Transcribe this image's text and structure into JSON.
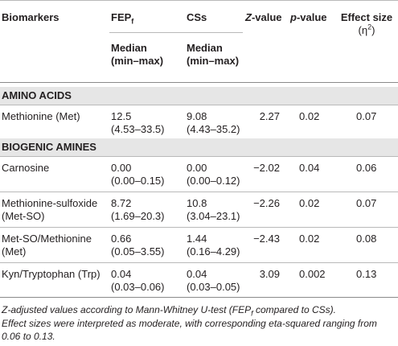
{
  "header": {
    "biomarkers": "Biomarkers",
    "group1": "FEP",
    "group1_sub": "f",
    "group2": "CSs",
    "z": "Z",
    "z_rest": "-value",
    "p": "p",
    "p_rest": "-value",
    "effect_line1": "Effect size",
    "effect_line2_pre": "(η",
    "effect_line2_sup": "2",
    "effect_line2_post": ")",
    "median": "Median",
    "minmax": "(min–max)"
  },
  "sections": [
    {
      "title": "AMINO ACIDS",
      "rows": [
        {
          "name1": "Methionine (Met)",
          "name2": "",
          "fep": "12.5",
          "fep_range": "(4.53–33.5)",
          "css": "9.08",
          "css_range": "(4.43–35.2)",
          "z": "2.27",
          "p": "0.02",
          "effect": "0.07"
        }
      ]
    },
    {
      "title": "BIOGENIC AMINES",
      "rows": [
        {
          "name1": "Carnosine",
          "name2": "",
          "fep": "0.00",
          "fep_range": "(0.00–0.15)",
          "css": "0.00",
          "css_range": "(0.00–0.12)",
          "z": "−2.02",
          "p": "0.04",
          "effect": "0.06"
        },
        {
          "name1": "Methionine-sulfoxide",
          "name2": "(Met-SO)",
          "fep": "8.72",
          "fep_range": "(1.69–20.3)",
          "css": "10.8",
          "css_range": "(3.04–23.1)",
          "z": "−2.26",
          "p": "0.02",
          "effect": "0.07"
        },
        {
          "name1": "Met-SO/Methionine",
          "name2": "(Met)",
          "fep": "0.66",
          "fep_range": "(0.05–3.55)",
          "css": "1.44",
          "css_range": "(0.16–4.29)",
          "z": "−2.43",
          "p": "0.02",
          "effect": "0.08"
        },
        {
          "name1": "Kyn/Tryptophan (Trp)",
          "name2": "",
          "fep": "0.04",
          "fep_range": "(0.03–0.06)",
          "css": "0.04",
          "css_range": "(0.03–0.05)",
          "z": "3.09",
          "p": "0.002",
          "effect": "0.13"
        }
      ]
    }
  ],
  "footnotes": {
    "line1_pre": "Z-adjusted values according to Mann-Whitney U-test (FEP",
    "line1_sub": "f",
    "line1_post": " compared to CSs).",
    "line2": "Effect sizes were interpreted as moderate, with corresponding eta-squared ranging from",
    "line3": "0.06 to 0.13."
  }
}
